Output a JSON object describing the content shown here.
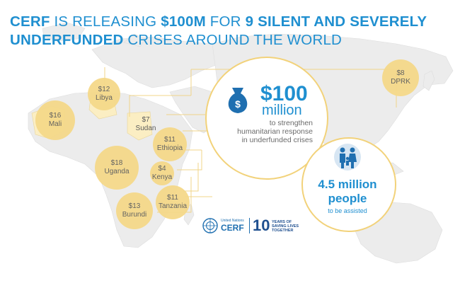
{
  "title": {
    "part1": "CERF",
    "part2": " IS RELEASING ",
    "part3": "$100M",
    "part4": " FOR ",
    "part5": "9 SILENT AND SEVERELY",
    "part6": "UNDERFUNDED",
    "part7": " CRISES AROUND THE WORLD"
  },
  "countries": [
    {
      "amount": "$12",
      "name": "Libya"
    },
    {
      "amount": "$16",
      "name": "Mali"
    },
    {
      "amount": "$7",
      "name": "Sudan"
    },
    {
      "amount": "$11",
      "name": "Ethiopia"
    },
    {
      "amount": "$18",
      "name": "Uganda"
    },
    {
      "amount": "$4",
      "name": "Kenya"
    },
    {
      "amount": "$11",
      "name": "Tanzania"
    },
    {
      "amount": "$13",
      "name": "Burundi"
    },
    {
      "amount": "$8",
      "name": "DPRK"
    }
  ],
  "fund": {
    "amount": "$100",
    "unit": "million",
    "description_line1": "to strengthen",
    "description_line2": "humanitarian response",
    "description_line3": "in underfunded crises",
    "icon": "money-bag-icon",
    "icon_symbol": "$"
  },
  "people": {
    "amount": "4.5 million",
    "unit": "people",
    "subtitle": "to be assisted",
    "icon": "family-icon"
  },
  "logo": {
    "org_line1": "United Nations",
    "cerf": "CERF",
    "ten": "10",
    "years_line1": "YEARS OF",
    "years_line2": "SAVING LIVES",
    "years_line3": "TOGETHER"
  },
  "colors": {
    "accent_blue": "#1f8fd0",
    "bubble_yellow": "#f5d98a",
    "circle_border": "#f2d27a",
    "map_gray": "#e9e9e9"
  }
}
